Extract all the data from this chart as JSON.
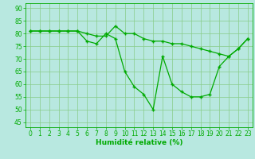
{
  "title": "",
  "xlabel": "Humidité relative (%)",
  "ylabel": "",
  "background_color": "#b8e8e0",
  "grid_color": "#88cc88",
  "line_color": "#00aa00",
  "tick_color": "#00aa00",
  "xlabel_color": "#00aa00",
  "xlim": [
    -0.5,
    23.5
  ],
  "ylim": [
    43,
    92
  ],
  "yticks": [
    45,
    50,
    55,
    60,
    65,
    70,
    75,
    80,
    85,
    90
  ],
  "xticks": [
    0,
    1,
    2,
    3,
    4,
    5,
    6,
    7,
    8,
    9,
    10,
    11,
    12,
    13,
    14,
    15,
    16,
    17,
    18,
    19,
    20,
    21,
    22,
    23
  ],
  "series1_x": [
    0,
    1,
    2,
    3,
    4,
    5,
    6,
    7,
    8,
    9,
    10,
    11,
    12,
    13,
    14,
    15,
    16,
    17,
    18,
    19,
    20,
    21,
    22,
    23
  ],
  "series1_y": [
    81,
    81,
    81,
    81,
    81,
    81,
    80,
    79,
    79,
    83,
    80,
    80,
    78,
    77,
    77,
    76,
    76,
    75,
    74,
    73,
    72,
    71,
    74,
    78
  ],
  "series2_x": [
    0,
    1,
    2,
    3,
    4,
    5,
    6,
    7,
    8,
    9,
    10,
    11,
    12,
    13,
    14,
    15,
    16,
    17,
    18,
    19,
    20,
    21,
    22,
    23
  ],
  "series2_y": [
    81,
    81,
    81,
    81,
    81,
    81,
    77,
    76,
    80,
    78,
    65,
    59,
    56,
    50,
    71,
    60,
    57,
    55,
    55,
    56,
    67,
    71,
    74,
    78
  ],
  "marker": "+",
  "markersize": 3.5,
  "linewidth": 0.9,
  "xlabel_fontsize": 6.5,
  "tick_fontsize": 5.5
}
